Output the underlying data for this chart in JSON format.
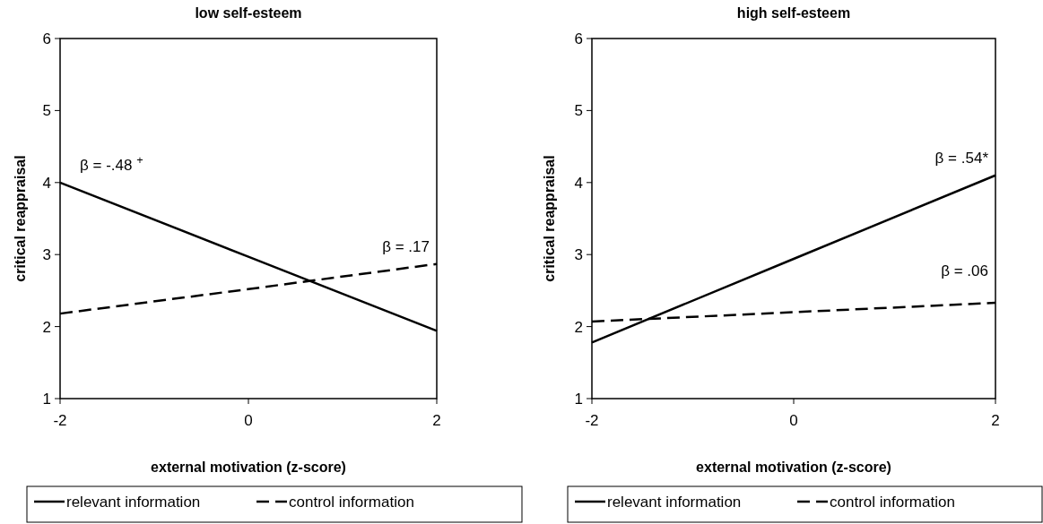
{
  "chart_data": [
    {
      "type": "line",
      "title": "low self-esteem",
      "xlabel": "external motivation (z-score)",
      "ylabel": "critical reappraisal",
      "categories": [
        "-2",
        "0",
        "2"
      ],
      "ylim": [
        1,
        6
      ],
      "yticks": [
        1,
        2,
        3,
        4,
        5,
        6
      ],
      "legend": "bottom",
      "marker": "none",
      "series": [
        {
          "name": "relevant information",
          "color": "#000000",
          "values": [
            4.0,
            2.97,
            1.94
          ],
          "line_style": "solid"
        },
        {
          "name": "control information",
          "color": "#000000",
          "values": [
            2.18,
            2.52,
            2.87
          ],
          "line_style": "dashed"
        }
      ],
      "annotations": [
        "β = -.48 $^{+}$",
        "β = .17"
      ]
    },
    {
      "type": "line",
      "title": "high self-esteem",
      "xlabel": "external motivation (z-score)",
      "ylabel": "critical reappraisal",
      "categories": [
        "-2",
        "0",
        "2"
      ],
      "ylim": [
        1,
        6
      ],
      "yticks": [
        1,
        2,
        3,
        4,
        5,
        6
      ],
      "legend": "bottom",
      "marker": "none",
      "series": [
        {
          "name": "relevant information",
          "color": "#000000",
          "values": [
            1.78,
            2.94,
            4.1
          ],
          "line_style": "solid"
        },
        {
          "name": "control information",
          "color": "#000000",
          "values": [
            2.07,
            2.2,
            2.33
          ],
          "line_style": "dashed"
        }
      ],
      "annotations": [
        "β = .54*",
        "β = .06"
      ]
    }
  ]
}
